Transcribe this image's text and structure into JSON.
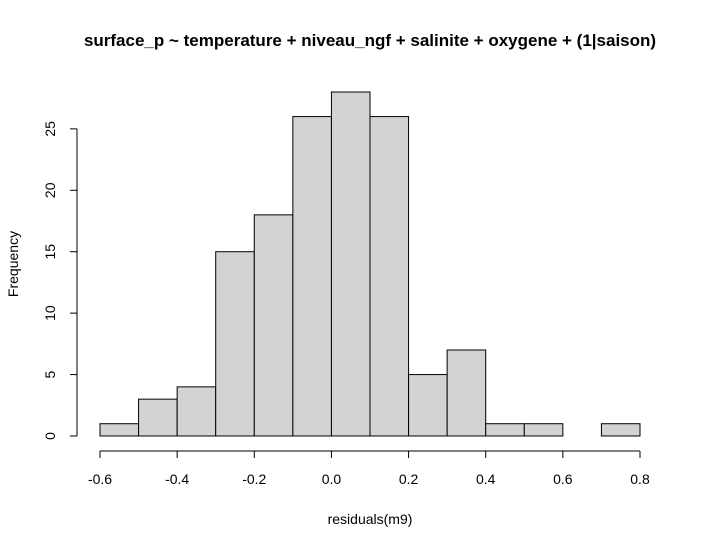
{
  "chart_data": {
    "type": "histogram",
    "title": "surface_p ~ temperature  + niveau_ngf + salinite + oxygene + (1|saison)",
    "xlabel": "residuals(m9)",
    "ylabel": "Frequency",
    "bin_edges": [
      -0.6,
      -0.5,
      -0.4,
      -0.3,
      -0.2,
      -0.1,
      0.0,
      0.1,
      0.2,
      0.3,
      0.4,
      0.5,
      0.6,
      0.7,
      0.8
    ],
    "counts": [
      1,
      3,
      4,
      15,
      18,
      26,
      28,
      26,
      5,
      7,
      1,
      1,
      0,
      1
    ],
    "xlim": [
      -0.6,
      0.8
    ],
    "ylim": [
      0,
      28
    ],
    "x_ticks": [
      -0.6,
      -0.4,
      -0.2,
      0.0,
      0.2,
      0.4,
      0.6,
      0.8
    ],
    "x_tick_labels": [
      "-0.6",
      "-0.4",
      "-0.2",
      "0.0",
      "0.2",
      "0.4",
      "0.6",
      "0.8"
    ],
    "y_ticks": [
      0,
      5,
      10,
      15,
      20,
      25
    ],
    "y_tick_labels": [
      "0",
      "5",
      "10",
      "15",
      "20",
      "25"
    ],
    "bar_fill": "#d3d3d3",
    "bar_stroke": "#000000",
    "grid": false
  }
}
